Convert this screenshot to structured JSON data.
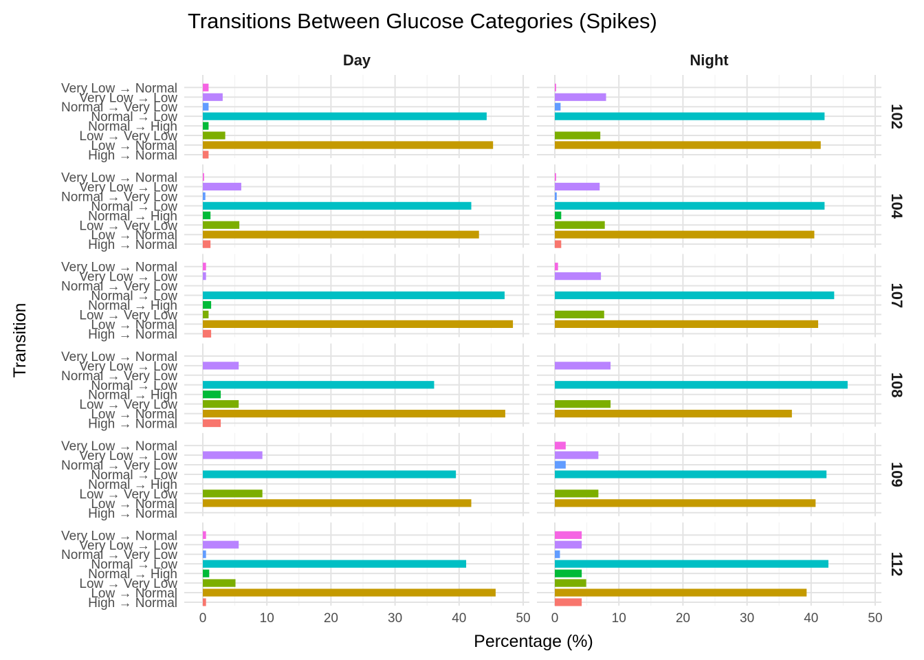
{
  "chart_data": {
    "type": "bar",
    "orientation": "horizontal",
    "title": "Transitions Between Glucose Categories (Spikes)",
    "xlabel": "Percentage (%)",
    "ylabel": "Transition",
    "xlim": [
      0,
      50
    ],
    "xticks": [
      "0",
      "10",
      "20",
      "30",
      "40",
      "50"
    ],
    "grid": true,
    "legend": "none",
    "columns": [
      "Day",
      "Night"
    ],
    "rows": [
      "102",
      "104",
      "107",
      "108",
      "109",
      "112"
    ],
    "categories": [
      "Very Low → Normal",
      "Very Low → Low",
      "Normal → Very Low",
      "Normal → Low",
      "Normal → High",
      "Low → Very Low",
      "Low → Normal",
      "High → Normal"
    ],
    "colors": [
      "#F564E3",
      "#B983FF",
      "#619CFF",
      "#00BFC4",
      "#00BA38",
      "#7CAE00",
      "#C49A00",
      "#F8766D"
    ],
    "panels": [
      {
        "row": "102",
        "column": "Day",
        "values": [
          0.9,
          3.1,
          0.9,
          44.3,
          0.9,
          3.5,
          45.3,
          0.9
        ]
      },
      {
        "row": "102",
        "column": "Night",
        "values": [
          0.2,
          8.0,
          0.9,
          42.1,
          0,
          7.1,
          41.5,
          0
        ]
      },
      {
        "row": "104",
        "column": "Day",
        "values": [
          0.2,
          6.0,
          0.4,
          41.9,
          1.2,
          5.7,
          43.1,
          1.2
        ]
      },
      {
        "row": "104",
        "column": "Night",
        "values": [
          0.2,
          7.0,
          0.3,
          42.1,
          1.0,
          7.8,
          40.5,
          1.0
        ]
      },
      {
        "row": "107",
        "column": "Day",
        "values": [
          0.5,
          0.5,
          0,
          47.1,
          1.3,
          0.9,
          48.4,
          1.3
        ]
      },
      {
        "row": "107",
        "column": "Night",
        "values": [
          0.5,
          7.2,
          0,
          43.6,
          0,
          7.7,
          41.1,
          0
        ]
      },
      {
        "row": "108",
        "column": "Day",
        "values": [
          0,
          5.6,
          0,
          36.1,
          2.8,
          5.6,
          47.2,
          2.8
        ]
      },
      {
        "row": "108",
        "column": "Night",
        "values": [
          0,
          8.7,
          0,
          45.7,
          0,
          8.7,
          37.0,
          0
        ]
      },
      {
        "row": "109",
        "column": "Day",
        "values": [
          0,
          9.3,
          0,
          39.5,
          0,
          9.3,
          41.9,
          0
        ]
      },
      {
        "row": "109",
        "column": "Night",
        "values": [
          1.7,
          6.8,
          1.7,
          42.4,
          0,
          6.8,
          40.7,
          0
        ]
      },
      {
        "row": "112",
        "column": "Day",
        "values": [
          0.5,
          5.6,
          0.5,
          41.1,
          1.0,
          5.1,
          45.7,
          0.5
        ]
      },
      {
        "row": "112",
        "column": "Night",
        "values": [
          4.2,
          4.2,
          0.8,
          42.7,
          4.2,
          4.9,
          39.3,
          4.2
        ]
      }
    ]
  }
}
